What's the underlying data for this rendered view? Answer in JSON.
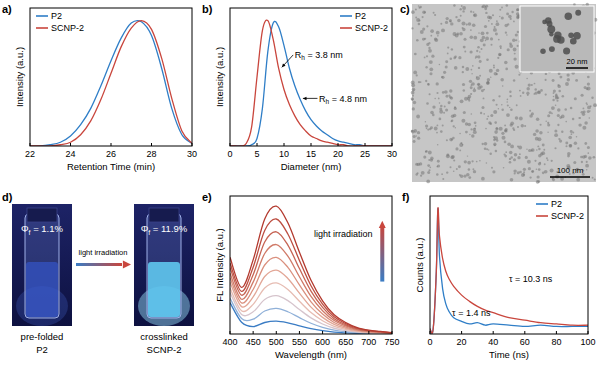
{
  "chart_data": [
    {
      "type": "line",
      "panel_label": "a)",
      "x_label": "Retention Time (min)",
      "y_label": "Intensity (a.u.)",
      "x": [
        22,
        22.5,
        23,
        23.5,
        24,
        24.5,
        25,
        25.5,
        26,
        26.5,
        27,
        27.5,
        28,
        28.5,
        29,
        29.5,
        30
      ],
      "xlim": [
        22,
        30
      ],
      "xticks": [
        22,
        24,
        26,
        28,
        30
      ],
      "ylim": [
        0,
        1.1
      ],
      "tick_labels": "x",
      "legend": "upper left",
      "series": [
        {
          "name": "P2",
          "color": "#2f7ec7",
          "values": [
            0,
            0,
            0.01,
            0.03,
            0.08,
            0.17,
            0.3,
            0.48,
            0.68,
            0.86,
            0.98,
            0.99,
            0.88,
            0.62,
            0.3,
            0.09,
            0.02
          ]
        },
        {
          "name": "SCNP-2",
          "color": "#c9463d",
          "values": [
            0,
            0,
            0,
            0.01,
            0.03,
            0.09,
            0.2,
            0.37,
            0.58,
            0.79,
            0.94,
            1.0,
            0.93,
            0.7,
            0.38,
            0.12,
            0.02
          ]
        }
      ]
    },
    {
      "type": "line",
      "panel_label": "b)",
      "x_label": "Diameter (nm)",
      "y_label": "Intensity (a.u.)",
      "x": [
        0,
        1,
        2,
        3,
        4,
        5,
        6,
        7,
        8,
        9,
        10,
        11,
        12,
        13,
        14,
        15,
        16,
        17,
        18,
        19,
        20,
        21,
        22,
        23,
        24,
        25,
        26,
        27,
        28,
        29,
        30
      ],
      "xlim": [
        0,
        30
      ],
      "xticks": [
        0,
        5,
        10,
        15,
        20,
        25,
        30
      ],
      "ylim": [
        0,
        1.1
      ],
      "tick_labels": "x",
      "legend": "upper right",
      "annotations": [
        "Rh = 3.8 nm",
        "Rh = 4.8 nm"
      ],
      "series": [
        {
          "name": "P2",
          "color": "#2f7ec7",
          "values": [
            0,
            0,
            0,
            0,
            0.01,
            0.06,
            0.3,
            0.75,
            0.98,
            0.95,
            0.8,
            0.62,
            0.48,
            0.37,
            0.28,
            0.21,
            0.16,
            0.12,
            0.09,
            0.06,
            0.04,
            0.03,
            0.02,
            0.01,
            0.01,
            0,
            0,
            0,
            0,
            0,
            0
          ]
        },
        {
          "name": "SCNP-2",
          "color": "#c9463d",
          "values": [
            0,
            0,
            0,
            0.02,
            0.15,
            0.55,
            0.92,
            1.0,
            0.85,
            0.62,
            0.45,
            0.33,
            0.24,
            0.17,
            0.12,
            0.08,
            0.06,
            0.04,
            0.03,
            0.02,
            0.01,
            0.01,
            0,
            0,
            0,
            0,
            0,
            0,
            0,
            0,
            0
          ]
        }
      ]
    },
    {
      "type": "line",
      "panel_label": "e)",
      "x_label": "Wavelength (nm)",
      "y_label": "FL Intensity (a.u.)",
      "x": [
        400,
        425,
        450,
        475,
        500,
        525,
        550,
        575,
        600,
        625,
        650,
        675,
        700,
        725,
        750
      ],
      "xlim": [
        400,
        750
      ],
      "xticks": [
        400,
        450,
        500,
        550,
        600,
        650,
        700,
        750
      ],
      "ylim": [
        0,
        1.08
      ],
      "tick_labels": "x",
      "annotations": [
        "light irradiation"
      ],
      "series": [
        {
          "color": "#3a7cc4",
          "values": [
            0.245,
            0.092,
            0.058,
            0.09,
            0.1,
            0.087,
            0.064,
            0.042,
            0.026,
            0.015,
            0.009,
            0.005,
            0.003,
            0.002,
            0.001
          ]
        },
        {
          "color": "#8fb0d8",
          "values": [
            0.28,
            0.121,
            0.116,
            0.18,
            0.2,
            0.174,
            0.128,
            0.084,
            0.052,
            0.03,
            0.018,
            0.01,
            0.006,
            0.004,
            0.002
          ]
        },
        {
          "color": "#d6c4cc",
          "values": [
            0.325,
            0.153,
            0.174,
            0.27,
            0.3,
            0.261,
            0.192,
            0.126,
            0.078,
            0.045,
            0.027,
            0.015,
            0.009,
            0.006,
            0.003
          ]
        },
        {
          "color": "#e6bcb2",
          "values": [
            0.36,
            0.182,
            0.232,
            0.36,
            0.4,
            0.348,
            0.256,
            0.168,
            0.104,
            0.06,
            0.036,
            0.02,
            0.012,
            0.008,
            0.004
          ]
        },
        {
          "color": "#e2a696",
          "values": [
            0.405,
            0.214,
            0.29,
            0.45,
            0.5,
            0.435,
            0.32,
            0.21,
            0.13,
            0.075,
            0.045,
            0.025,
            0.015,
            0.01,
            0.005
          ]
        },
        {
          "color": "#da907e",
          "values": [
            0.44,
            0.243,
            0.348,
            0.54,
            0.6,
            0.522,
            0.384,
            0.252,
            0.156,
            0.09,
            0.054,
            0.03,
            0.018,
            0.012,
            0.006
          ]
        },
        {
          "color": "#d07a68",
          "values": [
            0.475,
            0.272,
            0.406,
            0.63,
            0.7,
            0.609,
            0.448,
            0.294,
            0.182,
            0.105,
            0.063,
            0.035,
            0.021,
            0.014,
            0.007
          ]
        },
        {
          "color": "#c66353",
          "values": [
            0.52,
            0.304,
            0.464,
            0.72,
            0.8,
            0.696,
            0.512,
            0.336,
            0.208,
            0.12,
            0.072,
            0.04,
            0.024,
            0.016,
            0.008
          ]
        },
        {
          "color": "#bc4d40",
          "values": [
            0.555,
            0.333,
            0.522,
            0.81,
            0.9,
            0.783,
            0.576,
            0.378,
            0.234,
            0.135,
            0.081,
            0.045,
            0.027,
            0.018,
            0.009
          ]
        },
        {
          "color": "#b3392e",
          "values": [
            0.6,
            0.365,
            0.58,
            0.9,
            1.0,
            0.87,
            0.64,
            0.42,
            0.26,
            0.15,
            0.09,
            0.05,
            0.03,
            0.02,
            0.01
          ]
        }
      ]
    },
    {
      "type": "line",
      "panel_label": "f)",
      "x_label": "Time (ns)",
      "y_label": "Counts (a.u.)",
      "x": [
        0,
        2,
        4,
        5,
        6,
        8,
        10,
        12,
        15,
        20,
        25,
        30,
        35,
        40,
        50,
        60,
        70,
        80,
        90,
        100
      ],
      "xlim": [
        0,
        100
      ],
      "xticks": [
        0,
        20,
        40,
        60,
        80,
        100
      ],
      "ylim": [
        0,
        1.1
      ],
      "tick_labels": "x",
      "legend": "upper right",
      "annotations": [
        "τ = 10.3 ns",
        "τ = 1.4 ns"
      ],
      "series": [
        {
          "name": "P2",
          "color": "#2f7ec7",
          "values": [
            0.04,
            0.04,
            0.5,
            1.0,
            0.62,
            0.36,
            0.24,
            0.18,
            0.13,
            0.1,
            0.08,
            0.09,
            0.07,
            0.08,
            0.07,
            0.06,
            0.07,
            0.06,
            0.06,
            0.06
          ]
        },
        {
          "name": "SCNP-2",
          "color": "#c9463d",
          "values": [
            0.04,
            0.04,
            0.5,
            1.0,
            0.78,
            0.6,
            0.5,
            0.44,
            0.38,
            0.31,
            0.26,
            0.22,
            0.19,
            0.17,
            0.13,
            0.11,
            0.09,
            0.08,
            0.07,
            0.07
          ]
        }
      ]
    }
  ],
  "tem_image": {
    "panel_label": "c)",
    "scale_bar": "100 nm",
    "inset_scale_bar": "20 nm"
  },
  "photo": {
    "panel_label": "d)",
    "arrow_label": "light irradiation",
    "vials": [
      {
        "quantum_yield": "Φf = 1.1%",
        "caption": [
          "pre-folded",
          "P2"
        ]
      },
      {
        "quantum_yield": "Φf = 11.9%",
        "caption": [
          "crosslinked",
          "SCNP-2"
        ]
      }
    ]
  }
}
